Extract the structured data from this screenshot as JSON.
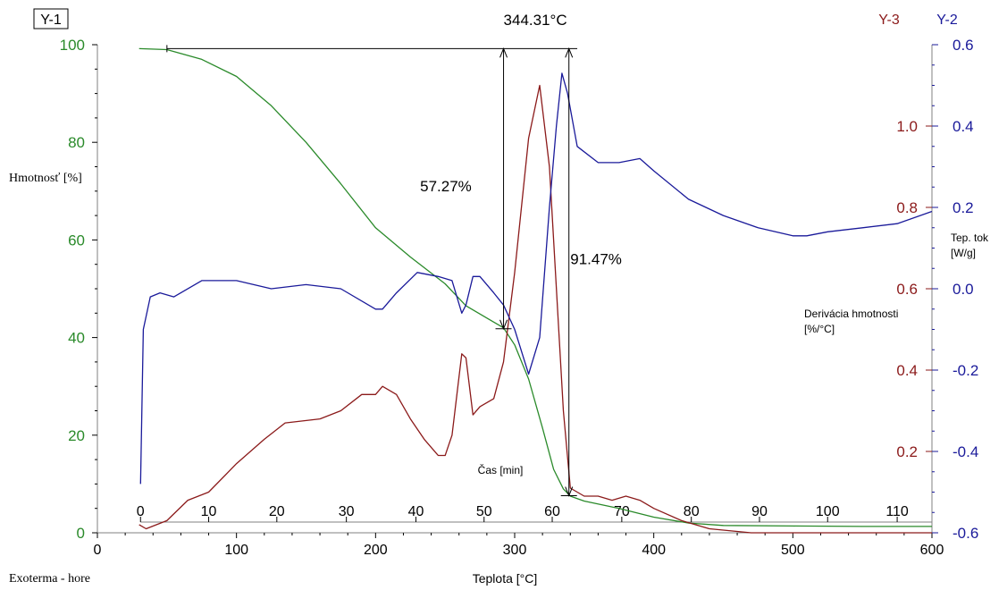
{
  "chart_data": {
    "type": "line",
    "panel_tags": [
      "Y-1",
      "Y-3",
      "Y-2"
    ],
    "x_axis": {
      "label": "Teplota [°C]",
      "range": [
        0,
        600
      ],
      "ticks": [
        0,
        100,
        200,
        300,
        400,
        500,
        600
      ]
    },
    "time_axis": {
      "label": "Čas [min]",
      "ticks": [
        {
          "label": "0",
          "temp": 31
        },
        {
          "label": "10",
          "temp": 80
        },
        {
          "label": "20",
          "temp": 129
        },
        {
          "label": "30",
          "temp": 179
        },
        {
          "label": "40",
          "temp": 229
        },
        {
          "label": "50",
          "temp": 278
        },
        {
          "label": "60",
          "temp": 327
        },
        {
          "label": "70",
          "temp": 377
        },
        {
          "label": "80",
          "temp": 427
        },
        {
          "label": "90",
          "temp": 476
        },
        {
          "label": "100",
          "temp": 525
        },
        {
          "label": "110",
          "temp": 575
        }
      ]
    },
    "y1_axis": {
      "label": "Hmotnosť [%]",
      "range": [
        0,
        100
      ],
      "ticks": [
        0,
        20,
        40,
        60,
        80,
        100
      ],
      "color": "#2a8a2a"
    },
    "y3_axis": {
      "label": "Derivácia hmotnosti [%/°C]",
      "range": [
        0.0,
        1.2
      ],
      "ticks": [
        "0.2",
        "0.4",
        "0.6",
        "0.8",
        "1.0"
      ],
      "color": "#8b1a1a"
    },
    "y2_axis": {
      "label": "Tep. tok [W/g]",
      "range": [
        -0.6,
        0.6
      ],
      "ticks": [
        "-0.6",
        "-0.4",
        "-0.2",
        "0.0",
        "0.2",
        "0.4",
        "0.6"
      ],
      "color": "#1a1a9a"
    },
    "footer_left": "Exoterma - hore",
    "series": [
      {
        "axis": "y1",
        "color": "#2a8a2a",
        "x": [
          30,
          50,
          75,
          100,
          125,
          150,
          175,
          200,
          225,
          250,
          265,
          280,
          292,
          300,
          310,
          320,
          328,
          335,
          340,
          350,
          375,
          400,
          425,
          450,
          500,
          550,
          600
        ],
        "y": [
          99.2,
          99.0,
          97.0,
          93.5,
          87.5,
          80.0,
          71.5,
          62.5,
          56.5,
          51.0,
          46.5,
          44.0,
          42.0,
          38.5,
          31.5,
          21.5,
          13.0,
          9.0,
          7.5,
          6.5,
          5.0,
          3.2,
          2.0,
          1.5,
          1.4,
          1.3,
          1.3
        ]
      },
      {
        "axis": "y3",
        "color": "#8b1a1a",
        "x": [
          30,
          35,
          50,
          65,
          80,
          100,
          120,
          135,
          160,
          175,
          190,
          200,
          205,
          215,
          225,
          235,
          245,
          250,
          255,
          262,
          265,
          270,
          275,
          285,
          292,
          300,
          310,
          318,
          325,
          330,
          335,
          340,
          350,
          360,
          370,
          380,
          390,
          400,
          420,
          440,
          470,
          500,
          550,
          600
        ],
        "y": [
          0.02,
          0.01,
          0.03,
          0.08,
          0.1,
          0.17,
          0.23,
          0.27,
          0.28,
          0.3,
          0.34,
          0.34,
          0.36,
          0.34,
          0.28,
          0.23,
          0.19,
          0.19,
          0.24,
          0.44,
          0.43,
          0.29,
          0.31,
          0.33,
          0.42,
          0.64,
          0.97,
          1.1,
          0.9,
          0.6,
          0.3,
          0.11,
          0.09,
          0.09,
          0.08,
          0.09,
          0.08,
          0.06,
          0.03,
          0.01,
          0.0,
          0.0,
          0.0,
          0.0
        ]
      },
      {
        "axis": "y2",
        "color": "#1a1a9a",
        "x": [
          31,
          33,
          38,
          45,
          55,
          75,
          100,
          125,
          150,
          175,
          200,
          205,
          215,
          230,
          245,
          255,
          262,
          265,
          270,
          275,
          285,
          292,
          300,
          310,
          318,
          325,
          330,
          334,
          338,
          345,
          360,
          375,
          390,
          400,
          425,
          450,
          475,
          500,
          510,
          525,
          550,
          575,
          600
        ],
        "y": [
          -0.48,
          -0.1,
          -0.02,
          -0.01,
          -0.02,
          0.02,
          0.02,
          0.0,
          0.01,
          0.0,
          -0.05,
          -0.05,
          -0.01,
          0.04,
          0.03,
          0.02,
          -0.06,
          -0.04,
          0.03,
          0.03,
          -0.01,
          -0.04,
          -0.1,
          -0.21,
          -0.12,
          0.2,
          0.4,
          0.53,
          0.48,
          0.35,
          0.31,
          0.31,
          0.32,
          0.29,
          0.22,
          0.18,
          0.15,
          0.13,
          0.13,
          0.14,
          0.15,
          0.16,
          0.19
        ]
      }
    ],
    "annotations": [
      {
        "text": "344.31°C",
        "x": 292,
        "y1": 104
      },
      {
        "text": "57.27%",
        "x": 232,
        "y1": 70
      },
      {
        "text": "91.47%",
        "x": 340,
        "y1": 55
      }
    ],
    "markers": {
      "top_line_y1": 99.2,
      "top_line_x": [
        50,
        345
      ],
      "v1_x": 292,
      "v1_bottom_y1": 41.8,
      "v2_x": 339,
      "v2_bottom_y1": 7.6
    }
  }
}
